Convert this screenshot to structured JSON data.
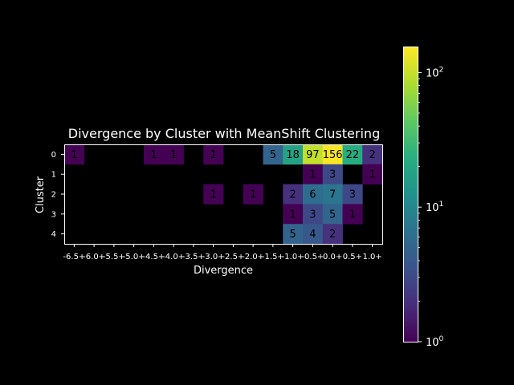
{
  "chart_data": {
    "type": "heatmap",
    "title": "Divergence by Cluster with MeanShift Clustering",
    "xlabel": "Divergence",
    "ylabel": "Cluster",
    "x_categories": [
      "-6.5+",
      "-6.0+",
      "-5.5+",
      "-5.0+",
      "-4.5+",
      "-4.0+",
      "-3.5+",
      "-3.0+",
      "-2.5+",
      "-2.0+",
      "-1.5+",
      "-1.0+",
      "-0.5+",
      "0.0+",
      "0.5+",
      "1.0+"
    ],
    "y_categories": [
      "0",
      "1",
      "2",
      "3",
      "4"
    ],
    "values": [
      [
        1,
        null,
        null,
        null,
        1,
        1,
        null,
        1,
        null,
        null,
        5,
        18,
        97,
        156,
        22,
        2
      ],
      [
        null,
        null,
        null,
        null,
        null,
        null,
        null,
        null,
        null,
        null,
        null,
        null,
        1,
        3,
        null,
        1
      ],
      [
        null,
        null,
        null,
        null,
        null,
        null,
        null,
        1,
        null,
        1,
        null,
        2,
        6,
        7,
        3,
        null
      ],
      [
        null,
        null,
        null,
        null,
        null,
        null,
        null,
        null,
        null,
        null,
        null,
        1,
        3,
        5,
        1,
        null
      ],
      [
        null,
        null,
        null,
        null,
        null,
        null,
        null,
        null,
        null,
        null,
        null,
        5,
        4,
        2,
        null,
        null
      ]
    ],
    "color_scale": "log",
    "colormap": "viridis",
    "colorbar": {
      "min": 1,
      "max": 156,
      "ticks": [
        {
          "value": 1,
          "base": "10",
          "exp": "0"
        },
        {
          "value": 10,
          "base": "10",
          "exp": "1"
        },
        {
          "value": 100,
          "base": "10",
          "exp": "2"
        }
      ]
    },
    "background": "#000000",
    "foreground": "#ffffff",
    "grid": false,
    "cell_label_color": "#000000"
  }
}
